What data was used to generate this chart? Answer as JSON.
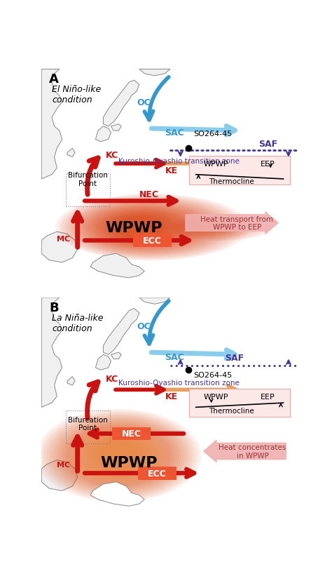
{
  "red": "#cc1111",
  "red_dark": "#aa0000",
  "orange_ke": "#e8a060",
  "blue_oc": "#3399cc",
  "blue_sac": "#88ccee",
  "blue_sac_dark": "#5599bb",
  "purple": "#44339a",
  "land_face": "#f0f0f0",
  "land_edge": "#888888",
  "wpwp_color": "#dd3300",
  "pink_arrow": "#f0b0b0",
  "thermo_bg": "#fde8e8",
  "thermo_edge": "#ddaaaa",
  "label_A": "A",
  "label_B": "B",
  "cond_A": "El Niño-like\ncondition",
  "cond_B": "La Niña-like\ncondition",
  "heat_A": "Heat transport from\nWPWP to EEP",
  "heat_B": "Heat concentrates\nin WPWP"
}
